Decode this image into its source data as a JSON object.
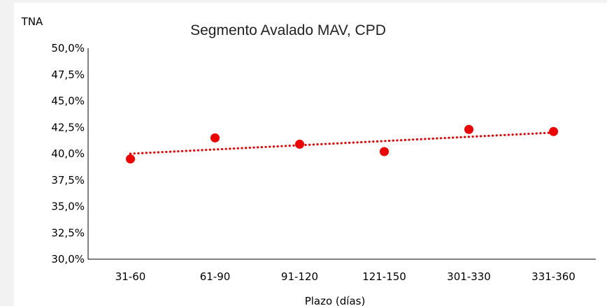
{
  "chart_data": {
    "type": "scatter",
    "title": "Segmento Avalado MAV, CPD",
    "ylabel": "TNA",
    "xlabel": "Plazo (días)",
    "categories": [
      "31-60",
      "61-90",
      "91-120",
      "121-150",
      "301-330",
      "331-360"
    ],
    "values": [
      39.5,
      41.5,
      40.9,
      40.2,
      42.3,
      42.1
    ],
    "trendline": {
      "type": "linear",
      "style": "dotted",
      "start": 40.0,
      "end": 42.0
    },
    "ylim": [
      30,
      50
    ],
    "yticks": [
      30,
      32.5,
      35,
      37.5,
      40,
      42.5,
      45,
      47.5,
      50
    ],
    "ytick_labels": [
      "30,0%",
      "32,5%",
      "35,0%",
      "37,5%",
      "40,0%",
      "42,5%",
      "45,0%",
      "47,5%",
      "50,0%"
    ],
    "grid": false,
    "legend": "none",
    "colors": {
      "marker": "#ee0000",
      "trendline": "#ee0000",
      "axis": "#000000"
    }
  }
}
